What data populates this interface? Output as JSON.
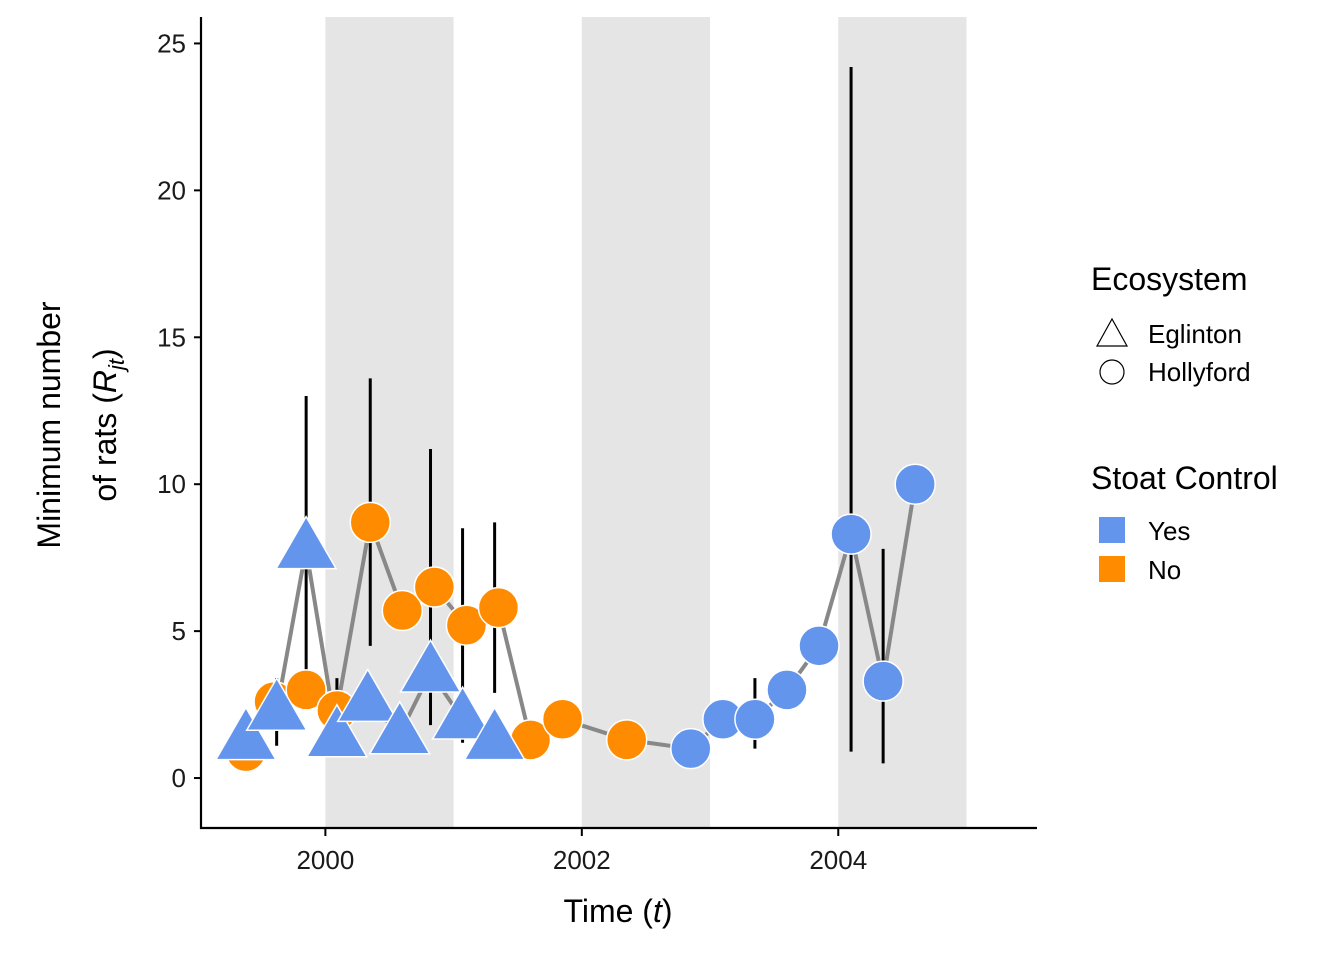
{
  "chart_data": {
    "type": "scatter",
    "title": "",
    "xlabel": "Time (t)",
    "xlabel_parts": {
      "main": "Time (",
      "var": "t",
      "close": ")"
    },
    "ylabel_line1": "Minimum  number",
    "ylabel_line2": {
      "main": "of rats (",
      "var": "R",
      "sub": "jt",
      "close": ")"
    },
    "xlim": [
      1999.03,
      2005.55
    ],
    "ylim": [
      -1.7,
      25.9
    ],
    "xticks": [
      2000,
      2002,
      2004
    ],
    "xtick_labels": [
      "2000",
      "2002",
      "2004"
    ],
    "yticks": [
      0,
      5,
      10,
      15,
      20,
      25
    ],
    "ytick_labels": [
      "0",
      "5",
      "10",
      "15",
      "20",
      "25"
    ],
    "shaded_periods": [
      [
        2000,
        2001
      ],
      [
        2002,
        2003
      ],
      [
        2004,
        2005
      ]
    ],
    "colors": {
      "Yes": "#6495ED",
      "No": "#FF8C00",
      "line": "#888888",
      "shade": "#E5E5E5",
      "errorbar": "#000000"
    },
    "legend": {
      "position": "right",
      "ecosystem": {
        "title": "Ecosystem",
        "items": [
          {
            "label": "Eglinton",
            "shape": "triangle"
          },
          {
            "label": "Hollyford",
            "shape": "circle"
          }
        ]
      },
      "stoat": {
        "title": "Stoat Control",
        "items": [
          {
            "label": "Yes",
            "color": "#6495ED"
          },
          {
            "label": "No",
            "color": "#FF8C00"
          }
        ]
      }
    },
    "series": [
      {
        "name": "Eglinton",
        "ecosystem": "Eglinton",
        "shape": "triangle",
        "points": [
          {
            "x": 1999.38,
            "y": 1.3,
            "stoat": "Yes"
          },
          {
            "x": 1999.62,
            "y": 2.3,
            "stoat": "Yes",
            "err": [
              1.1,
              3.4
            ]
          },
          {
            "x": 1999.85,
            "y": 7.8,
            "stoat": "Yes",
            "err": [
              3.7,
              13.0
            ]
          },
          {
            "x": 2000.09,
            "y": 1.4,
            "stoat": "Yes"
          },
          {
            "x": 2000.33,
            "y": 2.6,
            "stoat": "Yes"
          },
          {
            "x": 2000.58,
            "y": 1.5,
            "stoat": "Yes"
          },
          {
            "x": 2000.82,
            "y": 3.6,
            "stoat": "Yes",
            "err": [
              1.8,
              11.2
            ]
          },
          {
            "x": 2001.07,
            "y": 2.0,
            "stoat": "Yes",
            "err": [
              1.2,
              8.5
            ]
          },
          {
            "x": 2001.32,
            "y": 1.3,
            "stoat": "Yes",
            "err": [
              2.9,
              8.7
            ]
          }
        ]
      },
      {
        "name": "Hollyford",
        "ecosystem": "Hollyford",
        "shape": "circle",
        "points": [
          {
            "x": 1999.38,
            "y": 0.9,
            "stoat": "No"
          },
          {
            "x": 1999.6,
            "y": 2.6,
            "stoat": "No"
          },
          {
            "x": 1999.85,
            "y": 3.0,
            "stoat": "No"
          },
          {
            "x": 2000.09,
            "y": 2.3,
            "stoat": "No",
            "err": [
              1.3,
              3.4
            ]
          },
          {
            "x": 2000.35,
            "y": 8.7,
            "stoat": "No",
            "err": [
              4.5,
              13.6
            ]
          },
          {
            "x": 2000.6,
            "y": 5.7,
            "stoat": "No"
          },
          {
            "x": 2000.85,
            "y": 6.5,
            "stoat": "No"
          },
          {
            "x": 2001.1,
            "y": 5.2,
            "stoat": "No"
          },
          {
            "x": 2001.35,
            "y": 5.8,
            "stoat": "No"
          },
          {
            "x": 2001.6,
            "y": 1.3,
            "stoat": "No"
          },
          {
            "x": 2001.85,
            "y": 2.0,
            "stoat": "No"
          },
          {
            "x": 2002.35,
            "y": 1.3,
            "stoat": "No"
          },
          {
            "x": 2002.85,
            "y": 1.0,
            "stoat": "Yes"
          },
          {
            "x": 2003.1,
            "y": 2.0,
            "stoat": "Yes"
          },
          {
            "x": 2003.35,
            "y": 2.0,
            "stoat": "Yes",
            "err": [
              1.0,
              3.4
            ]
          },
          {
            "x": 2003.6,
            "y": 3.0,
            "stoat": "Yes"
          },
          {
            "x": 2003.85,
            "y": 4.5,
            "stoat": "Yes"
          },
          {
            "x": 2004.1,
            "y": 8.3,
            "stoat": "Yes",
            "err": [
              0.9,
              24.2
            ]
          },
          {
            "x": 2004.35,
            "y": 3.3,
            "stoat": "Yes",
            "err": [
              0.5,
              7.8
            ]
          },
          {
            "x": 2004.6,
            "y": 10.0,
            "stoat": "Yes"
          }
        ]
      }
    ]
  }
}
